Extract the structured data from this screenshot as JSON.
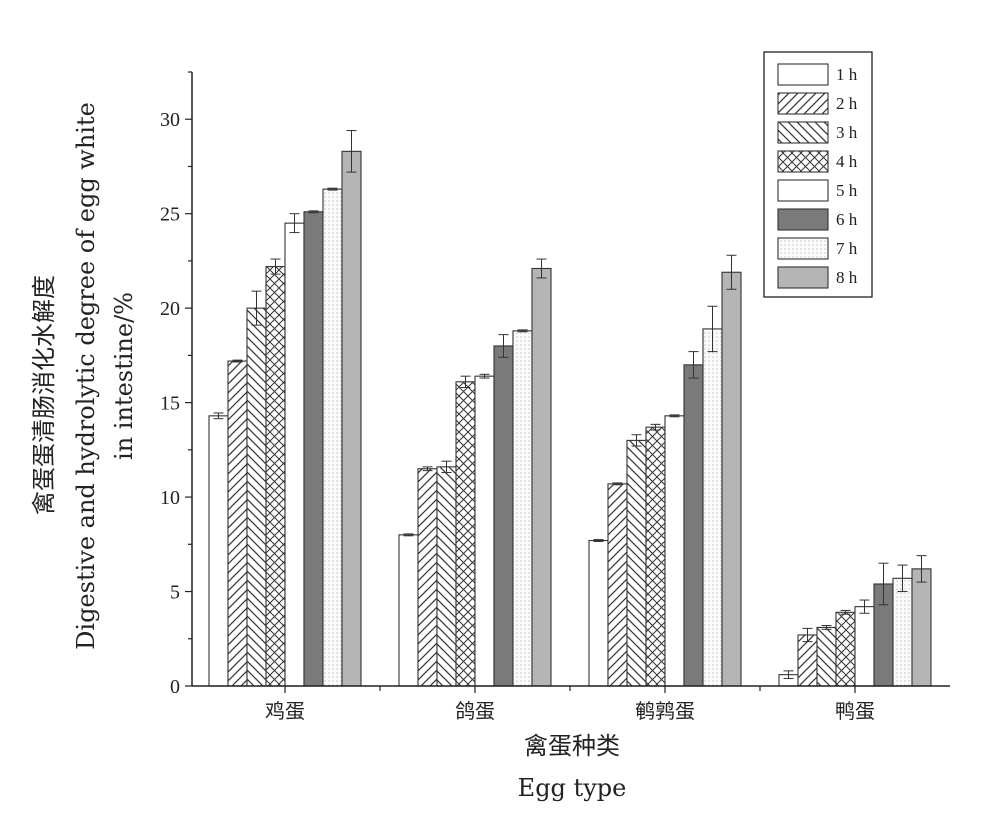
{
  "chart_data": {
    "type": "bar",
    "categories": [
      "鸡蛋",
      "鸽蛋",
      "鹌鹑蛋",
      "鸭蛋"
    ],
    "series": [
      {
        "name": "1 h",
        "pattern": "white",
        "values": [
          14.3,
          8.0,
          7.7,
          0.6
        ],
        "errors": [
          0.15,
          0.05,
          0.05,
          0.2
        ]
      },
      {
        "name": "2 h",
        "pattern": "diag-fwd",
        "values": [
          17.2,
          11.5,
          10.7,
          2.7
        ],
        "errors": [
          0.05,
          0.1,
          0.05,
          0.35
        ]
      },
      {
        "name": "3 h",
        "pattern": "diag-back",
        "values": [
          20.0,
          11.6,
          13.0,
          3.1
        ],
        "errors": [
          0.9,
          0.3,
          0.3,
          0.1
        ]
      },
      {
        "name": "4 h",
        "pattern": "cross",
        "values": [
          22.2,
          16.1,
          13.7,
          3.9
        ],
        "errors": [
          0.4,
          0.3,
          0.15,
          0.1
        ]
      },
      {
        "name": "5 h",
        "pattern": "white",
        "values": [
          24.5,
          16.4,
          14.3,
          4.2
        ],
        "errors": [
          0.5,
          0.1,
          0.05,
          0.35
        ]
      },
      {
        "name": "6 h",
        "pattern": "dark",
        "values": [
          25.1,
          18.0,
          17.0,
          5.4
        ],
        "errors": [
          0.05,
          0.6,
          0.7,
          1.1
        ]
      },
      {
        "name": "7 h",
        "pattern": "dotted",
        "values": [
          26.3,
          18.8,
          18.9,
          5.7
        ],
        "errors": [
          0.05,
          0.05,
          1.2,
          0.7
        ]
      },
      {
        "name": "8 h",
        "pattern": "gray",
        "values": [
          28.3,
          22.1,
          21.9,
          6.2
        ],
        "errors": [
          1.1,
          0.5,
          0.9,
          0.7
        ]
      }
    ],
    "ylim": [
      0,
      32.5
    ],
    "yticks": [
      0,
      5,
      10,
      15,
      20,
      25,
      30
    ],
    "ylabel_cn": "禽蛋蛋清肠消化水解度",
    "ylabel_en1": "Digestive and hydrolytic degree of egg white",
    "ylabel_en2": "in intestine/%",
    "xlabel_cn": "禽蛋种类",
    "xlabel_en": "Egg type",
    "legend_position": "top-right",
    "grid": false
  }
}
